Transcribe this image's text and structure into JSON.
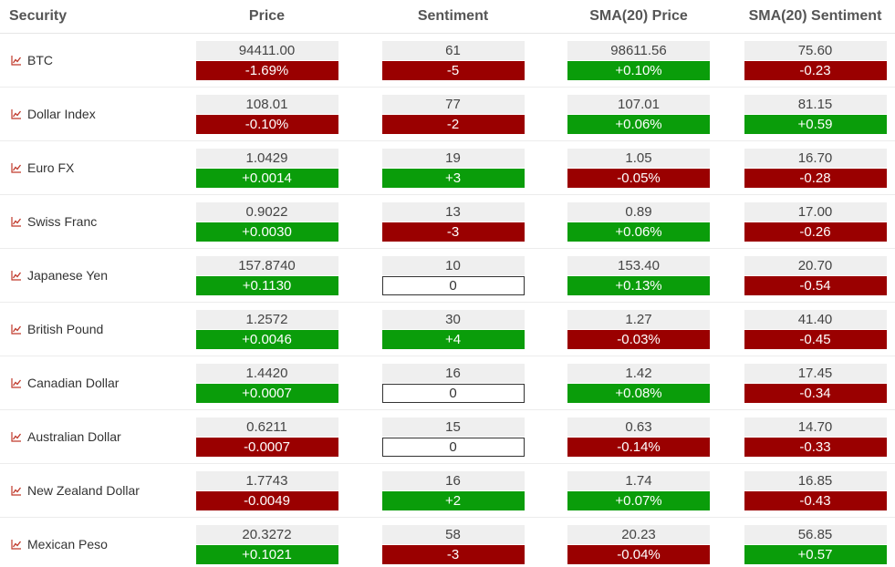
{
  "headers": [
    "Security",
    "Price",
    "Sentiment",
    "SMA(20) Price",
    "SMA(20) Sentiment"
  ],
  "colors": {
    "up": "#0a9d0a",
    "down": "#9a0000",
    "neutral_bg": "#efefef",
    "icon": "#c0392b"
  },
  "icon": "chart-line-icon",
  "rows": [
    {
      "name": "BTC",
      "price": {
        "v": "94411.00",
        "c": "-1.69%",
        "d": "down"
      },
      "sent": {
        "v": "61",
        "c": "-5",
        "d": "down"
      },
      "sma_price": {
        "v": "98611.56",
        "c": "+0.10%",
        "d": "up"
      },
      "sma_sent": {
        "v": "75.60",
        "c": "-0.23",
        "d": "down"
      }
    },
    {
      "name": "Dollar Index",
      "price": {
        "v": "108.01",
        "c": "-0.10%",
        "d": "down"
      },
      "sent": {
        "v": "77",
        "c": "-2",
        "d": "down"
      },
      "sma_price": {
        "v": "107.01",
        "c": "+0.06%",
        "d": "up"
      },
      "sma_sent": {
        "v": "81.15",
        "c": "+0.59",
        "d": "up"
      }
    },
    {
      "name": "Euro FX",
      "price": {
        "v": "1.0429",
        "c": "+0.0014",
        "d": "up"
      },
      "sent": {
        "v": "19",
        "c": "+3",
        "d": "up"
      },
      "sma_price": {
        "v": "1.05",
        "c": "-0.05%",
        "d": "down"
      },
      "sma_sent": {
        "v": "16.70",
        "c": "-0.28",
        "d": "down"
      }
    },
    {
      "name": "Swiss Franc",
      "price": {
        "v": "0.9022",
        "c": "+0.0030",
        "d": "up"
      },
      "sent": {
        "v": "13",
        "c": "-3",
        "d": "down"
      },
      "sma_price": {
        "v": "0.89",
        "c": "+0.06%",
        "d": "up"
      },
      "sma_sent": {
        "v": "17.00",
        "c": "-0.26",
        "d": "down"
      }
    },
    {
      "name": "Japanese Yen",
      "price": {
        "v": "157.8740",
        "c": "+0.1130",
        "d": "up"
      },
      "sent": {
        "v": "10",
        "c": "0",
        "d": "flat"
      },
      "sma_price": {
        "v": "153.40",
        "c": "+0.13%",
        "d": "up"
      },
      "sma_sent": {
        "v": "20.70",
        "c": "-0.54",
        "d": "down"
      }
    },
    {
      "name": "British Pound",
      "price": {
        "v": "1.2572",
        "c": "+0.0046",
        "d": "up"
      },
      "sent": {
        "v": "30",
        "c": "+4",
        "d": "up"
      },
      "sma_price": {
        "v": "1.27",
        "c": "-0.03%",
        "d": "down"
      },
      "sma_sent": {
        "v": "41.40",
        "c": "-0.45",
        "d": "down"
      }
    },
    {
      "name": "Canadian Dollar",
      "price": {
        "v": "1.4420",
        "c": "+0.0007",
        "d": "up"
      },
      "sent": {
        "v": "16",
        "c": "0",
        "d": "flat"
      },
      "sma_price": {
        "v": "1.42",
        "c": "+0.08%",
        "d": "up"
      },
      "sma_sent": {
        "v": "17.45",
        "c": "-0.34",
        "d": "down"
      }
    },
    {
      "name": "Australian Dollar",
      "price": {
        "v": "0.6211",
        "c": "-0.0007",
        "d": "down"
      },
      "sent": {
        "v": "15",
        "c": "0",
        "d": "flat"
      },
      "sma_price": {
        "v": "0.63",
        "c": "-0.14%",
        "d": "down"
      },
      "sma_sent": {
        "v": "14.70",
        "c": "-0.33",
        "d": "down"
      }
    },
    {
      "name": "New Zealand Dollar",
      "price": {
        "v": "1.7743",
        "c": "-0.0049",
        "d": "down"
      },
      "sent": {
        "v": "16",
        "c": "+2",
        "d": "up"
      },
      "sma_price": {
        "v": "1.74",
        "c": "+0.07%",
        "d": "up"
      },
      "sma_sent": {
        "v": "16.85",
        "c": "-0.43",
        "d": "down"
      }
    },
    {
      "name": "Mexican Peso",
      "price": {
        "v": "20.3272",
        "c": "+0.1021",
        "d": "up"
      },
      "sent": {
        "v": "58",
        "c": "-3",
        "d": "down"
      },
      "sma_price": {
        "v": "20.23",
        "c": "-0.04%",
        "d": "down"
      },
      "sma_sent": {
        "v": "56.85",
        "c": "+0.57",
        "d": "up"
      }
    }
  ]
}
